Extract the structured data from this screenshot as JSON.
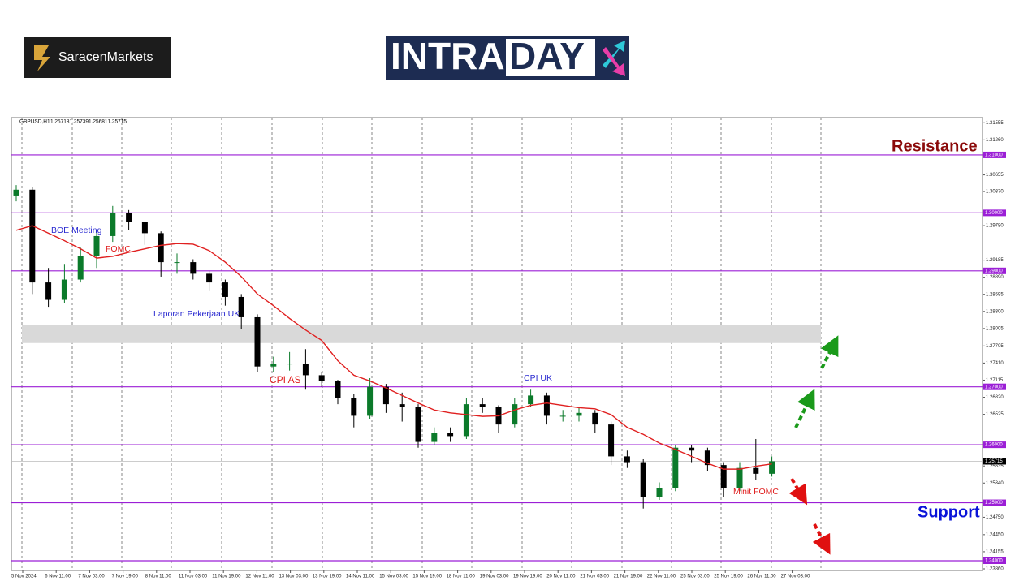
{
  "logo": {
    "brand": "SaracenMarkets"
  },
  "banner": {
    "parts": [
      "INTRA",
      "DAY"
    ]
  },
  "chart_data": {
    "type": "candlestick",
    "title": "GBPUSD,H1",
    "header_values": [
      1.25718,
      1.25739,
      1.25681,
      1.25715
    ],
    "ylim": [
      1.23832,
      1.31643
    ],
    "yticks": [
      {
        "value": 1.31555,
        "label": "1.31555"
      },
      {
        "value": 1.3126,
        "label": "1.31260"
      },
      {
        "value": 1.30655,
        "label": "1.30655"
      },
      {
        "value": 1.3037,
        "label": "1.30370"
      },
      {
        "value": 1.2978,
        "label": "1.29780"
      },
      {
        "value": 1.29185,
        "label": "1.29185"
      },
      {
        "value": 1.2889,
        "label": "1.28890"
      },
      {
        "value": 1.28595,
        "label": "1.28595"
      },
      {
        "value": 1.283,
        "label": "1.28300"
      },
      {
        "value": 1.28005,
        "label": "1.28005"
      },
      {
        "value": 1.27705,
        "label": "1.27705"
      },
      {
        "value": 1.2741,
        "label": "1.27410"
      },
      {
        "value": 1.27115,
        "label": "1.27115"
      },
      {
        "value": 1.2682,
        "label": "1.26820"
      },
      {
        "value": 1.26525,
        "label": "1.26525"
      },
      {
        "value": 1.25635,
        "label": "1.25635"
      },
      {
        "value": 1.2534,
        "label": "1.25340"
      },
      {
        "value": 1.2475,
        "label": "1.24750"
      },
      {
        "value": 1.2445,
        "label": "1.24450"
      },
      {
        "value": 1.24155,
        "label": "1.24155"
      },
      {
        "value": 1.2386,
        "label": "1.23860"
      }
    ],
    "levels": [
      {
        "value": 1.31,
        "label": "1.31000"
      },
      {
        "value": 1.3,
        "label": "1.30000"
      },
      {
        "value": 1.29,
        "label": "1.29000"
      },
      {
        "value": 1.27,
        "label": "1.27000"
      },
      {
        "value": 1.26,
        "label": "1.26000"
      },
      {
        "value": 1.25,
        "label": "1.25000"
      },
      {
        "value": 1.24,
        "label": "1.24000"
      }
    ],
    "level_color": "#9b1fd6",
    "last_price": {
      "value": 1.25715,
      "label": "1.25715"
    },
    "zone": [
      1.27755,
      1.28063
    ],
    "x_labels": [
      "5 Nov 2024",
      "6 Nov 11:00",
      "7 Nov 03:00",
      "7 Nov 19:00",
      "8 Nov 11:00",
      "11 Nov 03:00",
      "11 Nov 19:00",
      "12 Nov 11:00",
      "13 Nov 03:00",
      "13 Nov 19:00",
      "14 Nov 11:00",
      "15 Nov 03:00",
      "15 Nov 19:00",
      "18 Nov 11:00",
      "19 Nov 03:00",
      "19 Nov 19:00",
      "20 Nov 11:00",
      "21 Nov 03:00",
      "21 Nov 19:00",
      "22 Nov 11:00",
      "25 Nov 03:00",
      "25 Nov 19:00",
      "26 Nov 11:00",
      "27 Nov 03:00"
    ],
    "open": [
      1.303,
      1.304,
      1.288,
      1.285,
      1.2885,
      1.2925,
      1.296,
      1.3,
      1.2985,
      1.2965,
      1.2915,
      1.2915,
      1.2895,
      1.288,
      1.2855,
      1.282,
      1.2735,
      1.274,
      1.274,
      1.272,
      1.271,
      1.268,
      1.265,
      1.27,
      1.267,
      1.2665,
      1.2605,
      1.262,
      1.2615,
      1.267,
      1.2665,
      1.2635,
      1.267,
      1.2685,
      1.265,
      1.265,
      1.2655,
      1.2635,
      1.258,
      1.257,
      1.251,
      1.2525,
      1.2595,
      1.259,
      1.2565,
      1.2525,
      1.256,
      1.255
    ],
    "high": [
      1.3048,
      1.3045,
      1.2905,
      1.2912,
      1.294,
      1.297,
      1.3012,
      1.3005,
      1.2985,
      1.2968,
      1.293,
      1.292,
      1.29,
      1.2885,
      1.286,
      1.2825,
      1.2752,
      1.276,
      1.2765,
      1.2725,
      1.2712,
      1.2688,
      1.2715,
      1.2705,
      1.269,
      1.267,
      1.263,
      1.263,
      1.268,
      1.268,
      1.2668,
      1.268,
      1.2695,
      1.269,
      1.266,
      1.2665,
      1.266,
      1.264,
      1.259,
      1.2575,
      1.2535,
      1.26,
      1.26,
      1.2595,
      1.257,
      1.257,
      1.261,
      1.258
    ],
    "low": [
      1.302,
      1.286,
      1.2838,
      1.2845,
      1.288,
      1.2905,
      1.295,
      1.297,
      1.2945,
      1.289,
      1.2895,
      1.2885,
      1.2865,
      1.284,
      1.28,
      1.2725,
      1.2725,
      1.2728,
      1.2695,
      1.27,
      1.267,
      1.263,
      1.2645,
      1.2655,
      1.264,
      1.2595,
      1.26,
      1.2605,
      1.261,
      1.2655,
      1.262,
      1.263,
      1.2665,
      1.2635,
      1.264,
      1.264,
      1.262,
      1.2565,
      1.256,
      1.249,
      1.2505,
      1.252,
      1.257,
      1.2555,
      1.251,
      1.252,
      1.254,
      1.2545
    ],
    "close": [
      1.304,
      1.288,
      1.285,
      1.2885,
      1.2925,
      1.296,
      1.3,
      1.2985,
      1.2965,
      1.2915,
      1.2915,
      1.2895,
      1.288,
      1.2855,
      1.282,
      1.2735,
      1.274,
      1.274,
      1.272,
      1.271,
      1.268,
      1.265,
      1.27,
      1.267,
      1.2665,
      1.2605,
      1.262,
      1.2615,
      1.267,
      1.2665,
      1.2635,
      1.267,
      1.2685,
      1.265,
      1.265,
      1.2655,
      1.2635,
      1.258,
      1.257,
      1.251,
      1.2525,
      1.2595,
      1.259,
      1.2565,
      1.2525,
      1.256,
      1.255,
      1.25715
    ],
    "up_color": "#0b7a2a",
    "down_color": "#000000",
    "ma": {
      "color": "#e02020",
      "values": [
        1.297,
        1.2978,
        1.2965,
        1.2952,
        1.2938,
        1.2922,
        1.2925,
        1.2932,
        1.2938,
        1.2944,
        1.2947,
        1.2946,
        1.2935,
        1.2915,
        1.289,
        1.286,
        1.284,
        1.2818,
        1.2798,
        1.278,
        1.2745,
        1.272,
        1.271,
        1.2698,
        1.2685,
        1.2672,
        1.266,
        1.2655,
        1.2652,
        1.2649,
        1.265,
        1.266,
        1.2668,
        1.2672,
        1.2668,
        1.2664,
        1.2662,
        1.2652,
        1.263,
        1.2618,
        1.2603,
        1.2592,
        1.258,
        1.2568,
        1.2558,
        1.2558,
        1.2563,
        1.2567
      ]
    },
    "annotations": [
      {
        "text": "Resistance",
        "color": "#8b0a0a"
      },
      {
        "text": "Support",
        "color": "#0a14d8"
      },
      {
        "text": "BOE Meeting",
        "color": "#2a2ad0"
      },
      {
        "text": "FOMC",
        "color": "#e02020"
      },
      {
        "text": "Laporan Pekerjaan UK",
        "color": "#2a2ad0"
      },
      {
        "text": "CPI AS",
        "color": "#e02020"
      },
      {
        "text": "CPI UK",
        "color": "#2a2ad0"
      },
      {
        "text": "Minit FOMC",
        "color": "#e02020"
      }
    ]
  }
}
